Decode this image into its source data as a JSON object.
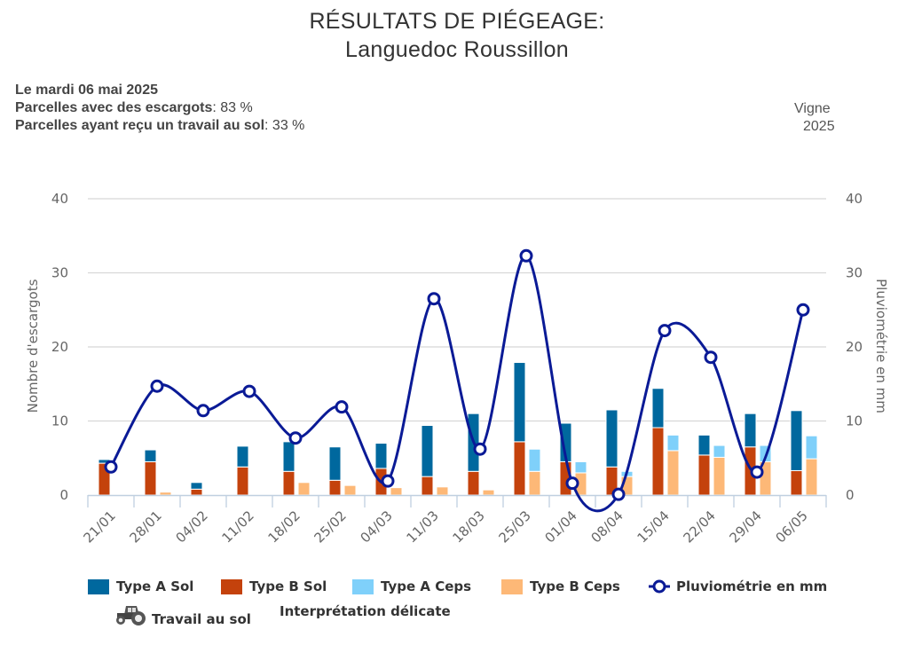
{
  "header": {
    "title_line1": "RÉSULTATS DE PIÉGEAGE:",
    "title_line2": "Languedoc Roussillon",
    "date_line": "Le mardi 06 mai 2025",
    "stat1_label": "Parcelles avec des escargots",
    "stat1_value": ": 83 %",
    "stat2_label": "Parcelles ayant reçu un travail au sol",
    "stat2_value": ": 33 %",
    "crop": "Vigne",
    "year": "2025"
  },
  "colors": {
    "type_a_sol": "#00689e",
    "type_b_sol": "#c4420c",
    "type_a_ceps": "#7fd0fa",
    "type_b_ceps": "#fdb877",
    "rain": "#0a1a96",
    "grid": "#d8d8d8",
    "axis": "#c0d0e0"
  },
  "legend": {
    "type_a_sol": "Type A Sol",
    "type_b_sol": "Type B Sol",
    "type_a_ceps": "Type A Ceps",
    "type_b_ceps": "Type B Ceps",
    "rain": "Pluviométrie en mm",
    "tillage": "Travail au sol",
    "note": "Interprétation délicate",
    "tillage_icon": "tractor-icon"
  },
  "chart_data": {
    "type": "bar",
    "title": "RÉSULTATS DE PIÉGEAGE: Languedoc Roussillon",
    "categories": [
      "21/01",
      "28/01",
      "04/02",
      "11/02",
      "18/02",
      "25/02",
      "04/03",
      "11/03",
      "18/03",
      "25/03",
      "01/04",
      "08/04",
      "15/04",
      "22/04",
      "29/04",
      "06/05"
    ],
    "ylabel": "Nombre d'escargots",
    "y2label": "Pluviométrie en mm",
    "ylim": [
      0,
      40
    ],
    "y2lim": [
      0,
      40
    ],
    "yticks": [
      "0",
      "10",
      "20",
      "30",
      "40"
    ],
    "y2ticks": [
      "0",
      "10",
      "20",
      "30",
      "40"
    ],
    "grid": true,
    "legend_position": "bottom",
    "series": [
      {
        "name": "Type A Sol",
        "stack": "sol",
        "type": "bar",
        "values": [
          0.5,
          1.6,
          0.9,
          2.8,
          4.0,
          4.5,
          3.4,
          6.9,
          7.8,
          10.7,
          5.2,
          7.7,
          5.3,
          2.7,
          4.5,
          8.1
        ]
      },
      {
        "name": "Type B Sol",
        "stack": "sol",
        "type": "bar",
        "values": [
          4.3,
          4.5,
          0.8,
          3.8,
          3.2,
          2.0,
          3.6,
          2.5,
          3.2,
          7.2,
          4.5,
          3.8,
          9.1,
          5.4,
          6.5,
          3.3
        ]
      },
      {
        "name": "Type A Ceps",
        "stack": "ceps",
        "type": "bar",
        "values": [
          0,
          0,
          0,
          0,
          0,
          0,
          0,
          0,
          0,
          3.0,
          1.5,
          0.7,
          2.1,
          1.6,
          2.2,
          3.1
        ]
      },
      {
        "name": "Type B Ceps",
        "stack": "ceps",
        "type": "bar",
        "values": [
          0,
          0.4,
          0,
          0,
          1.7,
          1.3,
          1.0,
          1.1,
          0.7,
          3.2,
          3.0,
          2.5,
          6.0,
          5.1,
          4.5,
          4.9
        ]
      },
      {
        "name": "Pluviométrie en mm",
        "type": "line",
        "axis": "right",
        "values": [
          3.8,
          14.7,
          11.4,
          14.0,
          7.7,
          11.9,
          1.9,
          26.5,
          6.2,
          32.3,
          1.6,
          0.1,
          22.2,
          18.6,
          3.1,
          25.0
        ]
      }
    ]
  }
}
